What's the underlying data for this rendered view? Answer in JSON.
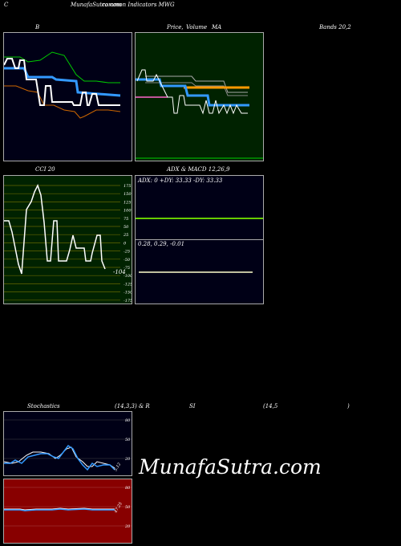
{
  "header": {
    "left_letter": "C",
    "site": "MunafaSutra.com",
    "subtitle": "common  Indicators MWG"
  },
  "bollinger": {
    "title_b": "B",
    "title_price": "Price,",
    "title_volume": "Volume",
    "title_ma": "MA",
    "title_bands": "Bands 20,2",
    "colors": {
      "background_left": "#000016",
      "background_right": "#002200",
      "upper": "#00cc00",
      "lower": "#cc6600",
      "price": "#ffffff",
      "ma": "#3399ff"
    }
  },
  "cci": {
    "title": "CCI 20",
    "value_label": "-104",
    "ticks": [
      "175",
      "150",
      "125",
      "100",
      "75",
      "50",
      "25",
      "0",
      "-25",
      "-50",
      "-75",
      "-100",
      "-125",
      "-150",
      "-175"
    ],
    "colors": {
      "background": "#002200",
      "line": "#ffffff",
      "grid": "#666600"
    }
  },
  "adx": {
    "title": "ADX  & MACD 12,26,9",
    "adx_readout": "ADX: 0   +DY: 33.33  -DY: 33.33",
    "macd_readout": "0.28,  0.29,  -0.01",
    "colors": {
      "background": "#000016",
      "adx_line": "#66cc00",
      "macd_line": "#ffffcc"
    }
  },
  "stochastics": {
    "title_left": "Stochastics",
    "title_params": "(14,3,3) & R",
    "title_si": "SI",
    "title_rsi_params": "(14,5",
    "title_close": ")",
    "stoch_ticks": [
      "80",
      "50",
      "20"
    ],
    "stoch_value": "5.12",
    "rsi_ticks": [
      "80",
      "50",
      "20"
    ],
    "rsi_value": "47.25",
    "colors": {
      "stoch_bg": "#000016",
      "rsi_bg": "#880000",
      "k_line": "#3399ff",
      "d_line": "#ffffff"
    }
  },
  "watermark": "MunafaSutra.com"
}
